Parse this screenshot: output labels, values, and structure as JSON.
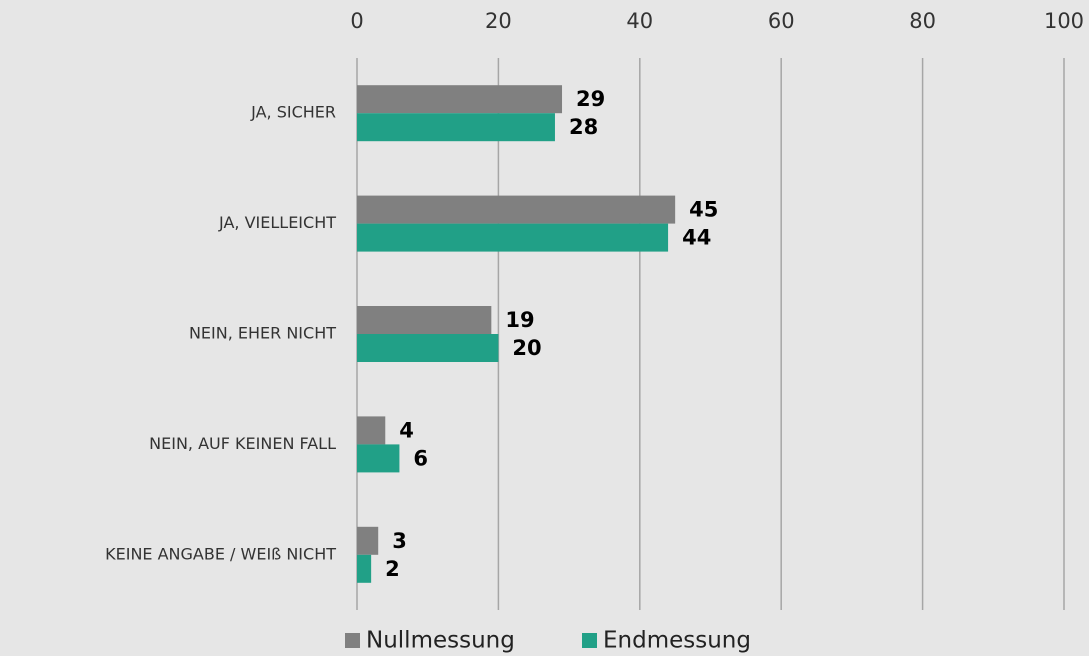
{
  "chart_data": {
    "type": "bar",
    "orientation": "horizontal",
    "categories": [
      "JA, SICHER",
      "JA, VIELLEICHT",
      "NEIN, EHER NICHT",
      "NEIN, AUF KEINEN FALL",
      "KEINE ANGABE / WEIß NICHT"
    ],
    "series": [
      {
        "name": "Nullmessung",
        "color": "#808080",
        "values": [
          29,
          45,
          19,
          4,
          3
        ]
      },
      {
        "name": "Endmessung",
        "color": "#21a087",
        "values": [
          28,
          44,
          20,
          6,
          2
        ]
      }
    ],
    "xlim": [
      0,
      100
    ],
    "xticks": [
      0,
      20,
      40,
      60,
      80,
      100
    ],
    "grid": true,
    "legend": "bottom"
  }
}
